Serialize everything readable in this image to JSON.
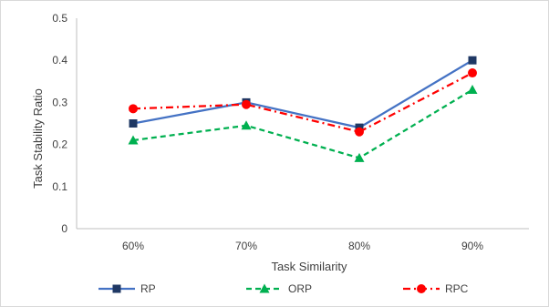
{
  "chart_data": {
    "type": "line",
    "title": "",
    "xlabel": "Task Similarity",
    "ylabel": "Task Stability Ratio",
    "categories": [
      "60%",
      "70%",
      "80%",
      "90%"
    ],
    "ylim": [
      0,
      0.5
    ],
    "yticks": [
      "0",
      "0.1",
      "0.2",
      "0.3",
      "0.4",
      "0.5"
    ],
    "grid": false,
    "legend_position": "bottom",
    "series": [
      {
        "name": "RP",
        "values": [
          0.25,
          0.3,
          0.24,
          0.4
        ],
        "color": "#4472c4",
        "marker": "square",
        "marker_color": "#1f3864",
        "dash": "solid"
      },
      {
        "name": "ORP",
        "values": [
          0.21,
          0.245,
          0.168,
          0.33
        ],
        "color": "#00b050",
        "marker": "triangle",
        "marker_color": "#00b050",
        "dash": "dashed"
      },
      {
        "name": "RPC",
        "values": [
          0.285,
          0.295,
          0.23,
          0.37
        ],
        "color": "#ff0000",
        "marker": "circle",
        "marker_color": "#ff0000",
        "dash": "dashdot"
      }
    ]
  }
}
